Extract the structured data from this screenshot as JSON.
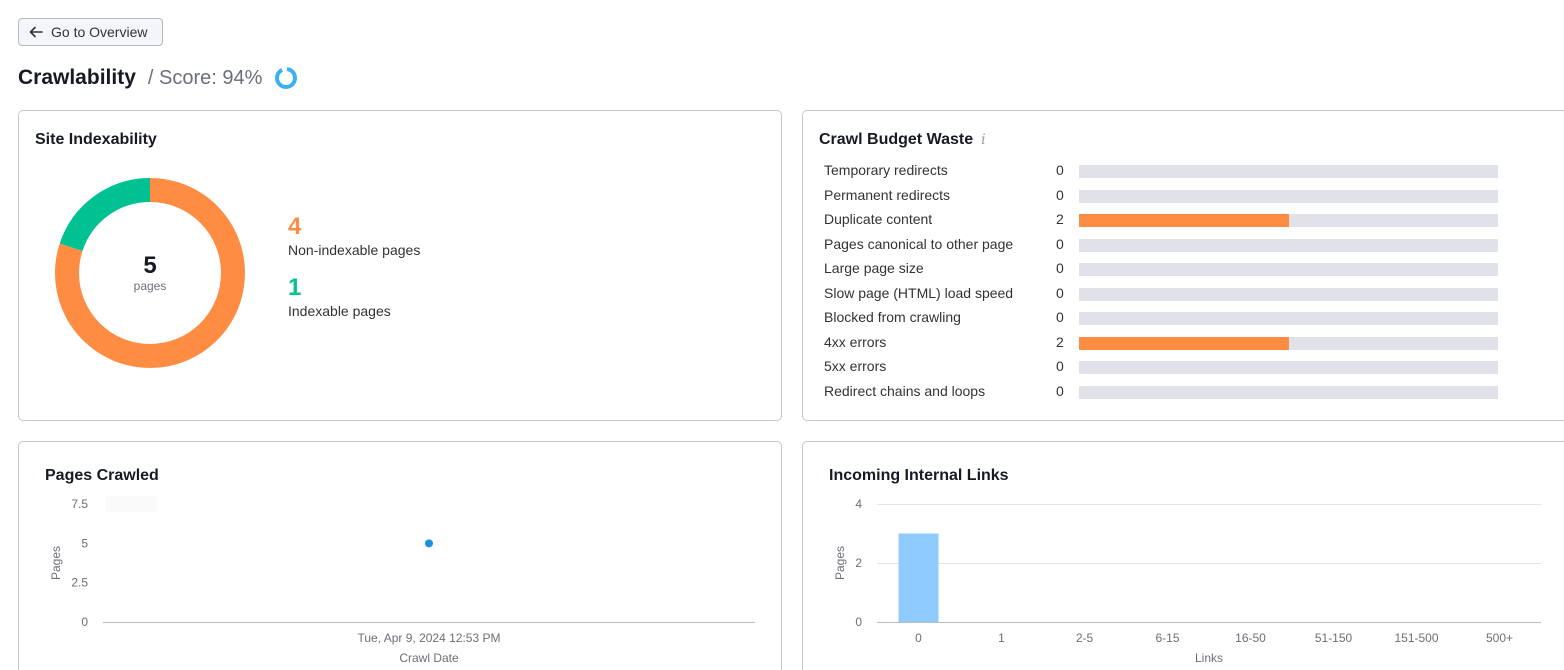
{
  "nav": {
    "back_label": "Go to Overview"
  },
  "header": {
    "title": "Crawlability",
    "score_text": "/ Score: 94%",
    "score_value": 94
  },
  "colors": {
    "orange": "#ff8c43",
    "green": "#00c192",
    "blue": "#1d8fe1",
    "light_blue": "#8fcbff",
    "track": "#e0e1e9",
    "score_ring": "#3ab1f0"
  },
  "site_indexability": {
    "title": "Site Indexability",
    "total": "5",
    "total_unit": "pages",
    "non_indexable": {
      "value": "4",
      "label": "Non-indexable pages"
    },
    "indexable": {
      "value": "1",
      "label": "Indexable pages"
    }
  },
  "crawl_budget": {
    "title": "Crawl Budget Waste",
    "info_icon": "info-icon",
    "max": 4,
    "rows": [
      {
        "label": "Temporary redirects",
        "value": "0"
      },
      {
        "label": "Permanent redirects",
        "value": "0"
      },
      {
        "label": "Duplicate content",
        "value": "2"
      },
      {
        "label": "Pages canonical to other page",
        "value": "0"
      },
      {
        "label": "Large page size",
        "value": "0"
      },
      {
        "label": "Slow page (HTML) load speed",
        "value": "0"
      },
      {
        "label": "Blocked from crawling",
        "value": "0"
      },
      {
        "label": "4xx errors",
        "value": "2"
      },
      {
        "label": "5xx errors",
        "value": "0"
      },
      {
        "label": "Redirect chains and loops",
        "value": "0"
      }
    ]
  },
  "pages_crawled": {
    "title": "Pages Crawled"
  },
  "incoming_links": {
    "title": "Incoming Internal Links"
  },
  "chart_data": [
    {
      "type": "scatter",
      "title": "Pages Crawled",
      "xlabel": "Crawl Date",
      "ylabel": "Pages",
      "x": [
        "Tue, Apr 9, 2024 12:53 PM"
      ],
      "y": [
        5
      ],
      "ylim": [
        0,
        7.5
      ],
      "yticks": [
        "0",
        "2.5",
        "5",
        "7.5"
      ],
      "grid": false
    },
    {
      "type": "bar",
      "title": "Incoming Internal Links",
      "xlabel": "Links",
      "ylabel": "Pages",
      "categories": [
        "0",
        "1",
        "2-5",
        "6-15",
        "16-50",
        "51-150",
        "151-500",
        "500+"
      ],
      "values": [
        3,
        0,
        0,
        0,
        0,
        0,
        0,
        0
      ],
      "ylim": [
        0,
        4
      ],
      "yticks": [
        "0",
        "2",
        "4"
      ],
      "grid": true
    }
  ]
}
